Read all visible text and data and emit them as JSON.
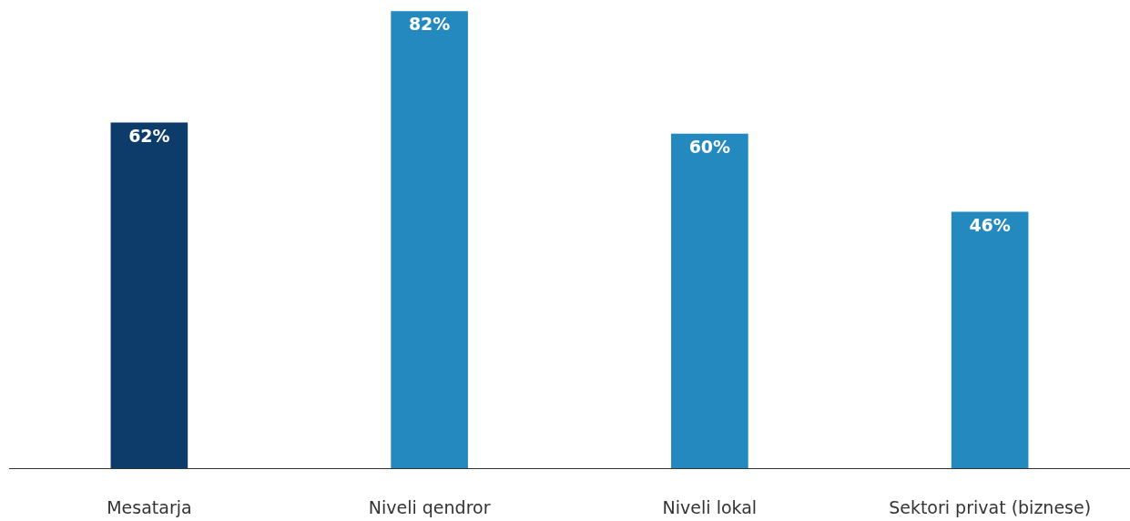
{
  "chart_data": {
    "type": "bar",
    "categories": [
      "Mesatarja",
      "Niveli qendror",
      "Niveli lokal",
      "Sektori privat (biznese)"
    ],
    "values": [
      62,
      82,
      60,
      46
    ],
    "colors": [
      "#0d3c6b",
      "#2389be",
      "#2389be",
      "#2389be"
    ],
    "value_labels": [
      "62%",
      "82%",
      "60%",
      "46%"
    ],
    "ylim": [
      0,
      84
    ],
    "grid": false,
    "tick_labels": "x"
  }
}
